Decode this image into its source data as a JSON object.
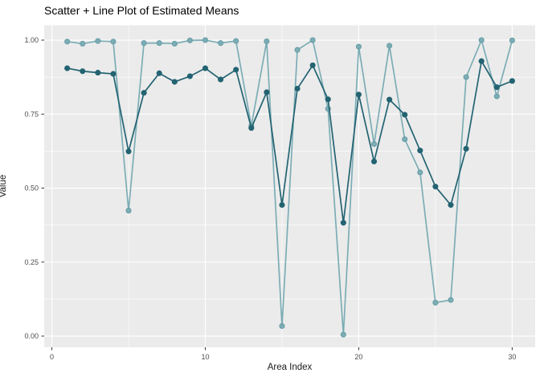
{
  "chart_data": {
    "type": "line",
    "title": "Scatter + Line Plot of Estimated Means",
    "xlabel": "Area Index",
    "ylabel": "Value",
    "x": [
      1,
      2,
      3,
      4,
      5,
      6,
      7,
      8,
      9,
      10,
      11,
      12,
      13,
      14,
      15,
      16,
      17,
      18,
      19,
      20,
      21,
      22,
      23,
      24,
      25,
      26,
      27,
      28,
      29,
      30
    ],
    "series": [
      {
        "name": "estimated-means-light-teal",
        "color": "#7CADB5",
        "marker_stroke": "#639AA4",
        "values": [
          0.995,
          0.988,
          0.997,
          0.995,
          0.424,
          0.99,
          0.99,
          0.988,
          0.999,
          1.0,
          0.99,
          0.997,
          0.71,
          0.996,
          0.034,
          0.967,
          1.0,
          0.768,
          0.005,
          0.978,
          0.649,
          0.981,
          0.665,
          0.553,
          0.113,
          0.122,
          0.875,
          1.0,
          0.81,
          0.999
        ]
      },
      {
        "name": "estimated-means-dark-teal",
        "color": "#236372",
        "marker_stroke": "#236372",
        "values": [
          0.905,
          0.895,
          0.89,
          0.886,
          0.624,
          0.822,
          0.888,
          0.859,
          0.878,
          0.905,
          0.867,
          0.9,
          0.703,
          0.824,
          0.443,
          0.836,
          0.915,
          0.8,
          0.383,
          0.816,
          0.59,
          0.799,
          0.748,
          0.627,
          0.505,
          0.443,
          0.633,
          0.929,
          0.841,
          0.862
        ]
      }
    ],
    "xticks": [
      0,
      10,
      20,
      30
    ],
    "xtick_labels": [
      "0",
      "10",
      "20",
      "30"
    ],
    "yticks": [
      0,
      0.25,
      0.5,
      0.75,
      1
    ],
    "ytick_labels": [
      "0.00",
      "0.25",
      "0.50",
      "0.75",
      "1.00"
    ],
    "xlim": [
      -0.5,
      31.5
    ],
    "ylim": [
      -0.0379,
      1.0502
    ],
    "grid": {
      "major": true,
      "minor": true
    },
    "legend_position": "none",
    "panel_bg": "#EBEBEB",
    "grid_color": "#FFFFFF",
    "tick_color": "#333333",
    "tick_label_color": "#4D4D4D"
  }
}
